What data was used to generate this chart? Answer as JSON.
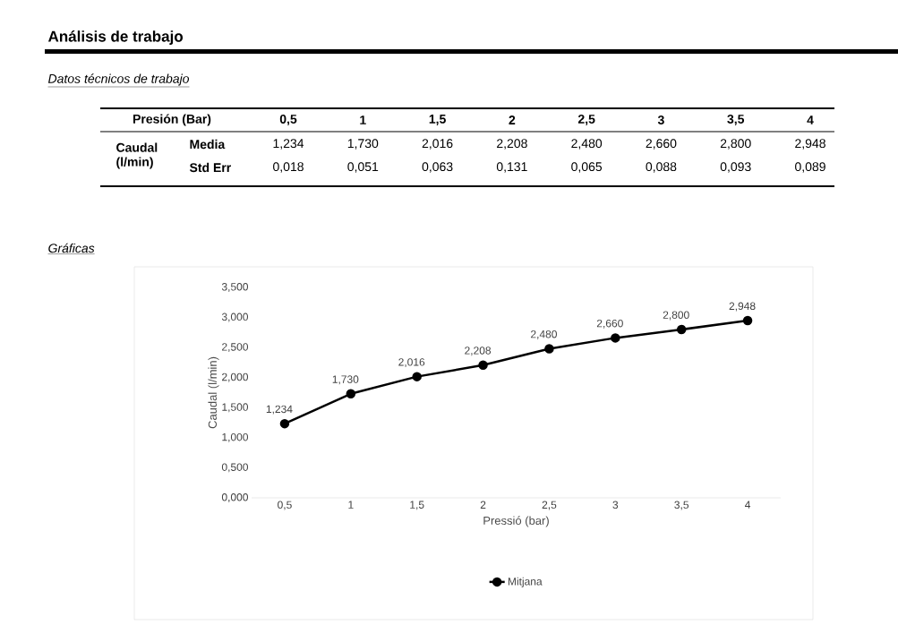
{
  "chart_data": {
    "type": "line",
    "title": "Análisis de trabajo",
    "subtitle": "Datos técnicos de trabajo",
    "xlabel": "Pressió (bar)",
    "ylabel": "Caudal (l/min)",
    "categories": [
      "0,5",
      "1",
      "1,5",
      "2",
      "2,5",
      "3",
      "3,5",
      "4"
    ],
    "series": [
      {
        "name": "Mitjana",
        "color": "#000000",
        "values": [
          1.234,
          1.73,
          2.016,
          2.208,
          2.48,
          2.66,
          2.8,
          2.948
        ],
        "value_labels": [
          "1,234",
          "1,730",
          "2,016",
          "2,208",
          "2,480",
          "2,660",
          "2,800",
          "2,948"
        ]
      }
    ],
    "ylim": [
      0,
      3.5
    ],
    "yticks": [
      {
        "value": 0,
        "label": "0,000"
      },
      {
        "value": 0.5,
        "label": "0,500"
      },
      {
        "value": 1,
        "label": "1,000"
      },
      {
        "value": 1.5,
        "label": "1,500"
      },
      {
        "value": 2,
        "label": "2,000"
      },
      {
        "value": 2.5,
        "label": "2,500"
      },
      {
        "value": 3,
        "label": "3,000"
      },
      {
        "value": 3.5,
        "label": "3,500"
      }
    ],
    "annotations": [
      "Gráficas",
      "Presión (Bar)",
      "Caudal (l/min)",
      "Media",
      "Std Err",
      "0,018",
      "0,051",
      "0,063",
      "0,131",
      "0,065",
      "0,088",
      "0,093",
      "0,089"
    ],
    "legend": "bottom",
    "marker": "circle",
    "line_style": "solid"
  }
}
